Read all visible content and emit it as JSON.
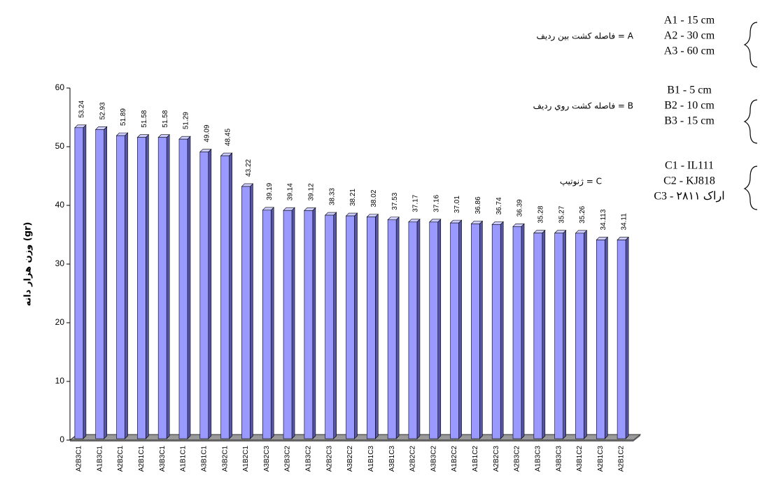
{
  "chart_data": {
    "type": "bar3d",
    "y_label": "وزن هزار دانه (gr)",
    "categories": [
      "A2B3C1",
      "A1B3C1",
      "A2B2C1",
      "A2B1C1",
      "A3B3C1",
      "A1B1C1",
      "A3B1C1",
      "A3B2C1",
      "A1B2C1",
      "A3B2C3",
      "A2B3C2",
      "A1B3C2",
      "A2B2C3",
      "A3B2C2",
      "A1B1C3",
      "A3B1C3",
      "A2B2C2",
      "A3B3C2",
      "A1B2C2",
      "A1B1C2",
      "A2B2C3",
      "A2B3C2",
      "A1B3C3",
      "A3B3C3",
      "A3B1C2",
      "A2B1C3",
      "A2B1C2"
    ],
    "values": [
      53.24,
      52.93,
      51.89,
      51.58,
      51.58,
      51.29,
      49.09,
      48.45,
      43.22,
      39.19,
      39.14,
      39.12,
      38.33,
      38.21,
      38.02,
      37.53,
      37.17,
      37.16,
      37.01,
      36.86,
      36.74,
      36.39,
      35.28,
      35.27,
      35.26,
      34.113,
      34.11
    ],
    "color": "#9999ff",
    "ylim": [
      0,
      60
    ],
    "yticks": [
      0,
      10,
      20,
      30,
      40,
      50,
      60
    ],
    "annotations": [
      {
        "label": "فاصله کشت بین ردیف = A",
        "items": [
          "A1 - 15 cm",
          "A2 - 30 cm",
          "A3 - 60 cm"
        ]
      },
      {
        "label": "فاصله کشت روي رديف = B",
        "items": [
          "B1 - 5 cm",
          "B2 - 10 cm",
          "B3 - 15 cm"
        ]
      },
      {
        "label": "ژنوتیپ = C",
        "items": [
          "C1 - IL111",
          "C2 - KJ818",
          "C3 - اراک ۲۸۱۱"
        ]
      }
    ]
  }
}
